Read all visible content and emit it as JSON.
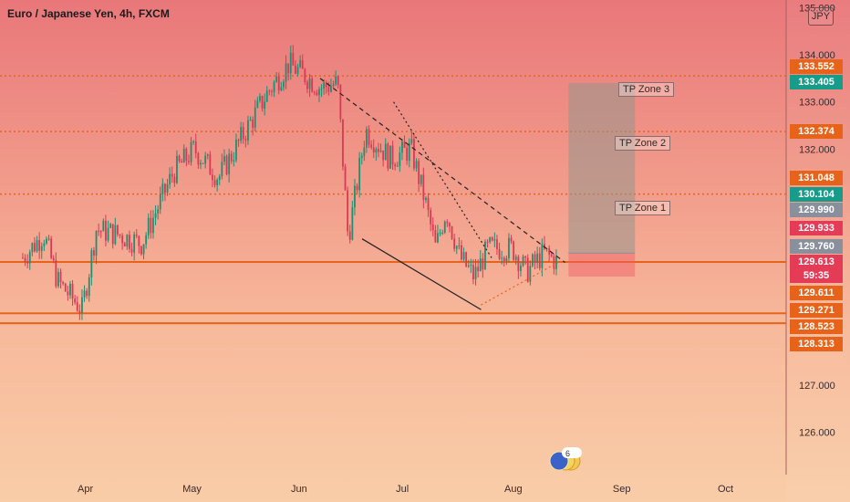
{
  "header": {
    "title": "Euro / Japanese Yen, 4h, FXCM",
    "currency_button": "JPY"
  },
  "tp_zones": [
    "TP Zone 3",
    "TP Zone 2",
    "TP Zone 1"
  ],
  "price_badges": [
    {
      "label": "133.552",
      "color": "#e8631a"
    },
    {
      "label": "133.405",
      "color": "#179c8a"
    },
    {
      "label": "132.374",
      "color": "#e8631a"
    },
    {
      "label": "131.048",
      "color": "#e8631a"
    },
    {
      "label": "130.104",
      "color": "#179c8a"
    },
    {
      "label": "129.990",
      "color": "#8a8f9c"
    },
    {
      "label": "129.933",
      "color": "#e43b57"
    },
    {
      "label": "129.760",
      "color": "#8a8f9c"
    },
    {
      "label": "129.613",
      "color": "#e43b57"
    },
    {
      "label": "59:35",
      "color": "#e43b57"
    },
    {
      "label": "129.611",
      "color": "#e8631a"
    },
    {
      "label": "129.271",
      "color": "#e8631a"
    },
    {
      "label": "128.523",
      "color": "#e8631a"
    },
    {
      "label": "128.313",
      "color": "#e8631a"
    }
  ],
  "reaction_count": "6",
  "colors": {
    "up": "#1e8f73",
    "down": "#d83a55",
    "level": "#e8631a",
    "trend": "#222222"
  },
  "chart_data": {
    "type": "candlestick",
    "symbol": "Euro / Japanese Yen",
    "timeframe": "4h",
    "source": "FXCM",
    "y_axis_ticks": [
      135.0,
      134.0,
      133.0,
      132.0,
      131.0,
      130.0,
      127.0,
      126.0
    ],
    "y_axis_labels": [
      "135.000",
      "134.000",
      "133.000",
      "132.000",
      "127.000",
      "126.000"
    ],
    "x_axis_labels": [
      "Apr",
      "May",
      "Jun",
      "Jul",
      "Aug",
      "Sep",
      "Oct"
    ],
    "ylim": [
      125.5,
      135.0
    ],
    "price_path": [
      [
        "2023-03-14",
        129.7
      ],
      [
        "2023-03-20",
        130.2
      ],
      [
        "2023-03-24",
        129.2
      ],
      [
        "2023-03-31",
        128.6
      ],
      [
        "2023-04-04",
        130.3
      ],
      [
        "2023-04-10",
        130.2
      ],
      [
        "2023-04-17",
        130.0
      ],
      [
        "2023-04-20",
        130.5
      ],
      [
        "2023-04-26",
        131.5
      ],
      [
        "2023-05-02",
        132.0
      ],
      [
        "2023-05-09",
        131.4
      ],
      [
        "2023-05-16",
        132.3
      ],
      [
        "2023-05-23",
        133.2
      ],
      [
        "2023-05-29",
        133.8
      ],
      [
        "2023-06-02",
        133.6
      ],
      [
        "2023-06-07",
        133.3
      ],
      [
        "2023-06-12",
        133.4
      ],
      [
        "2023-06-15",
        130.1
      ],
      [
        "2023-06-20",
        132.4
      ],
      [
        "2023-06-27",
        131.8
      ],
      [
        "2023-07-03",
        132.0
      ],
      [
        "2023-07-07",
        130.9
      ],
      [
        "2023-07-10",
        129.9
      ],
      [
        "2023-07-13",
        130.7
      ],
      [
        "2023-07-17",
        129.7
      ],
      [
        "2023-07-21",
        129.3
      ],
      [
        "2023-07-25",
        129.9
      ],
      [
        "2023-08-01",
        129.9
      ],
      [
        "2023-08-05",
        129.4
      ],
      [
        "2023-08-10",
        129.8
      ],
      [
        "2023-08-14",
        129.6
      ]
    ],
    "horizontal_levels": [
      {
        "price": 133.552,
        "style": "dotted"
      },
      {
        "price": 132.374,
        "style": "dotted"
      },
      {
        "price": 131.048,
        "style": "dotted"
      },
      {
        "price": 129.611,
        "style": "solid"
      },
      {
        "price": 128.523,
        "style": "solid"
      },
      {
        "price": 128.313,
        "style": "solid"
      }
    ],
    "trendlines": [
      {
        "from": [
          "2023-06-07",
          133.5
        ],
        "to": [
          "2023-08-16",
          129.6
        ],
        "style": "dashed"
      },
      {
        "from": [
          "2023-06-19",
          130.1
        ],
        "to": [
          "2023-07-23",
          128.6
        ],
        "style": "solid"
      },
      {
        "from": [
          "2023-06-28",
          133.0
        ],
        "to": [
          "2023-07-26",
          129.7
        ],
        "style": "dotted"
      },
      {
        "from": [
          "2023-07-23",
          128.7
        ],
        "to": [
          "2023-08-14",
          129.6
        ],
        "style": "dotted"
      }
    ],
    "take_profit_box": {
      "x_start": "2023-08-17",
      "x_end": "2023-09-05",
      "entry": 129.8,
      "target": 133.4,
      "stop": 129.3
    },
    "tp_zone_prices": [
      133.0,
      131.9,
      130.6
    ],
    "current_price": "129.613",
    "countdown": "59:35"
  }
}
